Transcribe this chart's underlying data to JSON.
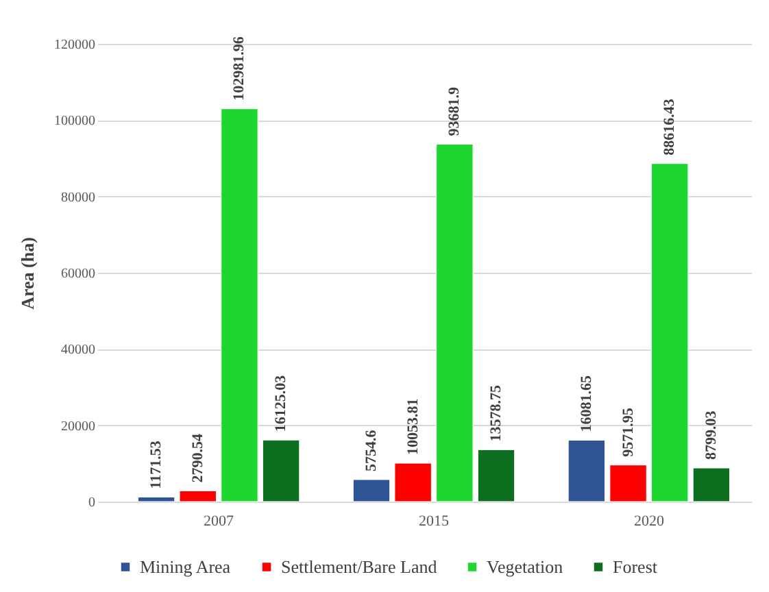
{
  "chart_data": {
    "type": "bar",
    "ylabel": "Area (ha)",
    "categories": [
      "2007",
      "2015",
      "2020"
    ],
    "series": [
      {
        "name": "Mining Area",
        "color": "#2f5597",
        "values": [
          1171.53,
          5754.6,
          16081.65
        ]
      },
      {
        "name": "Settlement/Bare Land",
        "color": "#ff0000",
        "values": [
          2790.54,
          10053.81,
          9571.95
        ]
      },
      {
        "name": "Vegetation",
        "color": "#1ed630",
        "values": [
          102981.96,
          93681.9,
          88616.43
        ]
      },
      {
        "name": "Forest",
        "color": "#0c6e1e",
        "values": [
          16125.03,
          13578.75,
          8799.03
        ]
      }
    ],
    "ylim": [
      0,
      120000
    ],
    "yticks": [
      0,
      20000,
      40000,
      60000,
      80000,
      100000,
      120000
    ],
    "grid": "y",
    "legend": "bottom",
    "data_labels": true
  }
}
